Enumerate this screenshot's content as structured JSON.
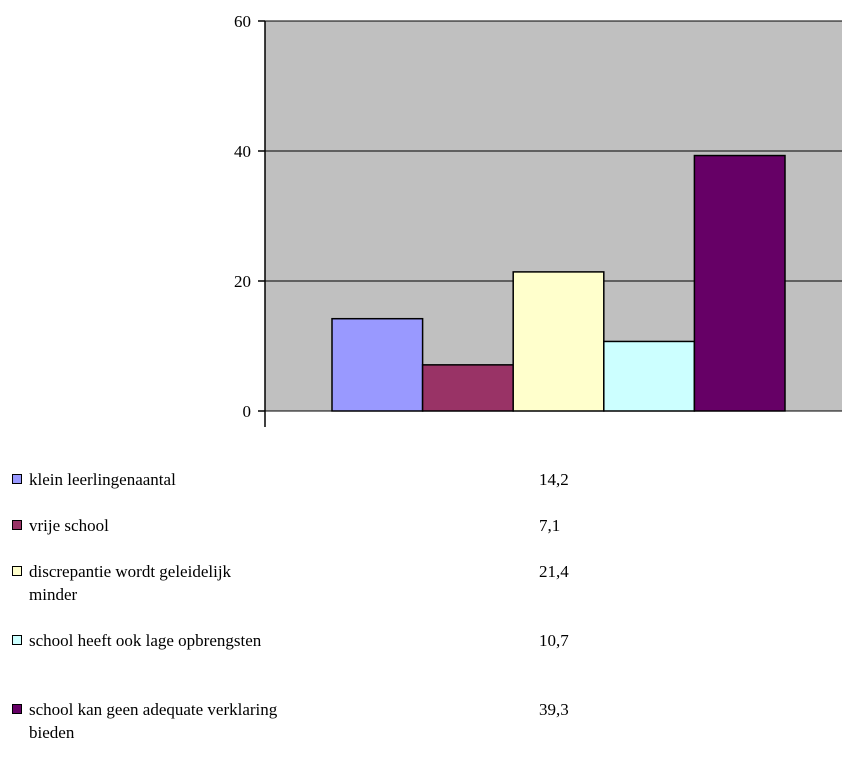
{
  "chart_data": {
    "type": "bar",
    "ylim": [
      0,
      60
    ],
    "yticks": [
      0,
      20,
      40,
      60
    ],
    "ytick_labels": [
      "0",
      "20",
      "40",
      "60"
    ],
    "grid": true,
    "plot_background": "#c0c0c0",
    "series": [
      {
        "name": "klein leerlingenaantal",
        "value": 14.2,
        "value_label": "14,2",
        "color": "#9999ff"
      },
      {
        "name": "vrije school",
        "value": 7.1,
        "value_label": "7,1",
        "color": "#993366"
      },
      {
        "name": "discrepantie wordt geleidelijk minder",
        "value": 21.4,
        "value_label": "21,4",
        "color": "#ffffcc"
      },
      {
        "name": "school heeft ook lage opbrengsten",
        "value": 10.7,
        "value_label": "10,7",
        "color": "#ccffff"
      },
      {
        "name": "school kan geen adequate verklaring bieden",
        "value": 39.3,
        "value_label": "39,3",
        "color": "#660066"
      }
    ],
    "legend_position": "bottom"
  }
}
